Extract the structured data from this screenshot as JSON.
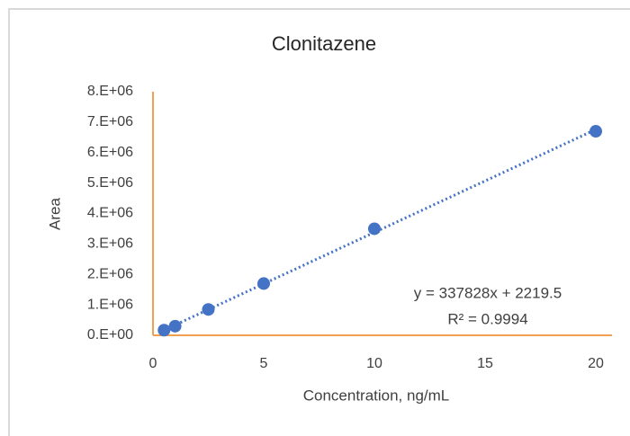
{
  "chart_data": {
    "type": "scatter",
    "title": "Clonitazene",
    "x_label": "Concentration, ng/mL",
    "y_label": "Area",
    "series": [
      {
        "name": "Area",
        "color": "#4472c4",
        "x": [
          0.5,
          1,
          2.5,
          5,
          10,
          20
        ],
        "values": [
          170000,
          300000,
          850000,
          1700000,
          3500000,
          6700000
        ]
      }
    ],
    "trendline": {
      "slope": 337828,
      "intercept": 2219.5,
      "style": "dotted",
      "equation_label": "y = 337828x + 2219.5",
      "r2": 0.9994,
      "r2_label": "R² = 0.9994"
    },
    "xlim": [
      0,
      20
    ],
    "xticks": [
      0,
      5,
      10,
      15,
      20
    ],
    "ylim": [
      0,
      8000000
    ],
    "yticks": [
      {
        "value": 0,
        "label": "0.E+00"
      },
      {
        "value": 1000000,
        "label": "1.E+06"
      },
      {
        "value": 2000000,
        "label": "2.E+06"
      },
      {
        "value": 3000000,
        "label": "3.E+06"
      },
      {
        "value": 4000000,
        "label": "4.E+06"
      },
      {
        "value": 5000000,
        "label": "5.E+06"
      },
      {
        "value": 6000000,
        "label": "6.E+06"
      },
      {
        "value": 7000000,
        "label": "7.E+06"
      },
      {
        "value": 8000000,
        "label": "8.E+06"
      }
    ],
    "axis_color": "#f0a050",
    "grid": false
  }
}
